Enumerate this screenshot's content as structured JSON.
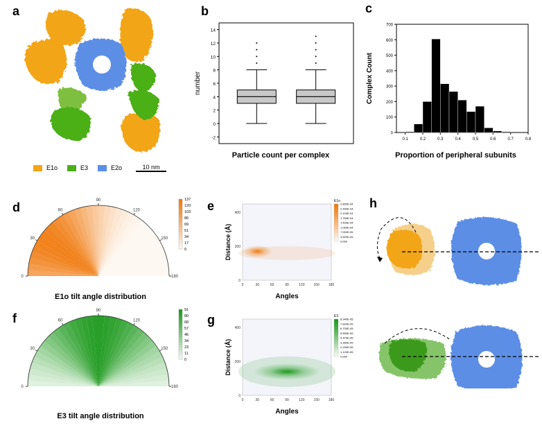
{
  "panels": {
    "a": {
      "label": "a",
      "legend": [
        {
          "name": "E1o",
          "color": "#f2a516"
        },
        {
          "name": "E3",
          "color": "#4caf18"
        },
        {
          "name": "E2o",
          "color": "#5b8ee6"
        }
      ],
      "scale_bar": "10 nm"
    },
    "b": {
      "label": "b",
      "caption": "Particle count per complex"
    },
    "c": {
      "label": "c",
      "caption": "Proportion of peripheral subunits"
    },
    "d": {
      "label": "d",
      "caption": "E1o tilt angle distribution",
      "colorbar_ticks": [
        "137",
        "120",
        "103",
        "86",
        "69",
        "51",
        "34",
        "17",
        "0"
      ]
    },
    "e": {
      "label": "e",
      "colorbar_title": "E1o",
      "colorbar_ticks": [
        "2.800E-04",
        "2.450E-04",
        "2.100E-04",
        "1.750E-04",
        "1.400E-04",
        "1.050E-04",
        "7.000E-05",
        "3.500E-05",
        "0.000"
      ]
    },
    "f": {
      "label": "f",
      "caption": "E3 tilt angle distribution",
      "colorbar_ticks": [
        "91",
        "80",
        "68",
        "57",
        "46",
        "34",
        "23",
        "11",
        "0"
      ]
    },
    "g": {
      "label": "g",
      "colorbar_title": "E3",
      "colorbar_ticks": [
        "8.940E-05",
        "7.820E-05",
        "6.700E-05",
        "5.590E-05",
        "4.470E-05",
        "3.350E-05",
        "2.230E-05",
        "1.120E-05",
        "0.000"
      ]
    },
    "h": {
      "label": "h"
    }
  },
  "chart_data": [
    {
      "type": "box",
      "panel": "b",
      "categories": [
        "E1o",
        "E3"
      ],
      "ylabel": "number",
      "xlabel": "Particle count per complex",
      "ylim": [
        -3,
        15
      ],
      "yticks": [
        -2,
        0,
        2,
        4,
        6,
        8,
        10,
        12,
        14
      ],
      "series": [
        {
          "category": "E1o",
          "min": 0,
          "q1": 3,
          "median": 4,
          "q3": 5,
          "max": 8,
          "outliers": [
            9,
            10,
            11,
            12
          ]
        },
        {
          "category": "E3",
          "min": 0,
          "q1": 3,
          "median": 4,
          "q3": 5,
          "max": 8,
          "outliers": [
            9,
            10,
            11,
            12,
            13
          ]
        }
      ],
      "fill_color": "#c8c8c8"
    },
    {
      "type": "bar",
      "panel": "c",
      "ylabel": "Complex Count",
      "xlabel": "Proportion of peripheral subunits",
      "xlim": [
        0.05,
        0.8
      ],
      "ylim": [
        0,
        700
      ],
      "xticks": [
        0.1,
        0.2,
        0.3,
        0.4,
        0.5,
        0.6,
        0.7,
        0.8
      ],
      "yticks": [
        0,
        100,
        200,
        300,
        400,
        500,
        600,
        700
      ],
      "bin_width": 0.05,
      "bins": [
        0.125,
        0.175,
        0.225,
        0.275,
        0.325,
        0.375,
        0.425,
        0.475,
        0.525,
        0.575,
        0.625,
        0.675,
        0.725
      ],
      "values": [
        5,
        55,
        200,
        605,
        315,
        265,
        210,
        135,
        170,
        30,
        10,
        5,
        0
      ],
      "color": "#000000"
    },
    {
      "type": "polar-histogram",
      "panel": "d",
      "angle_ticks": [
        0,
        30,
        60,
        90,
        120,
        150,
        180
      ],
      "color_max": 137,
      "color": "#f07b10",
      "peak_angle": 35
    },
    {
      "type": "heatmap",
      "panel": "e",
      "xlabel": "Angles",
      "ylabel": "Distance (Å)",
      "xticks": [
        0,
        30,
        60,
        90,
        120,
        150,
        180
      ],
      "yticks": [
        0,
        200,
        400
      ],
      "color": "#f07b10",
      "peak": {
        "x": 30,
        "y": 170
      }
    },
    {
      "type": "polar-histogram",
      "panel": "f",
      "angle_ticks": [
        0,
        30,
        60,
        90,
        120,
        150,
        180
      ],
      "color_max": 91,
      "color": "#1e9a1e",
      "peak_angle": 90
    },
    {
      "type": "heatmap",
      "panel": "g",
      "xlabel": "Angles",
      "ylabel": "Distance (Å)",
      "xticks": [
        0,
        30,
        60,
        90,
        120,
        150,
        180
      ],
      "yticks": [
        0,
        200,
        400
      ],
      "color": "#1e9a1e",
      "peak": {
        "x": 90,
        "y": 140
      }
    }
  ]
}
